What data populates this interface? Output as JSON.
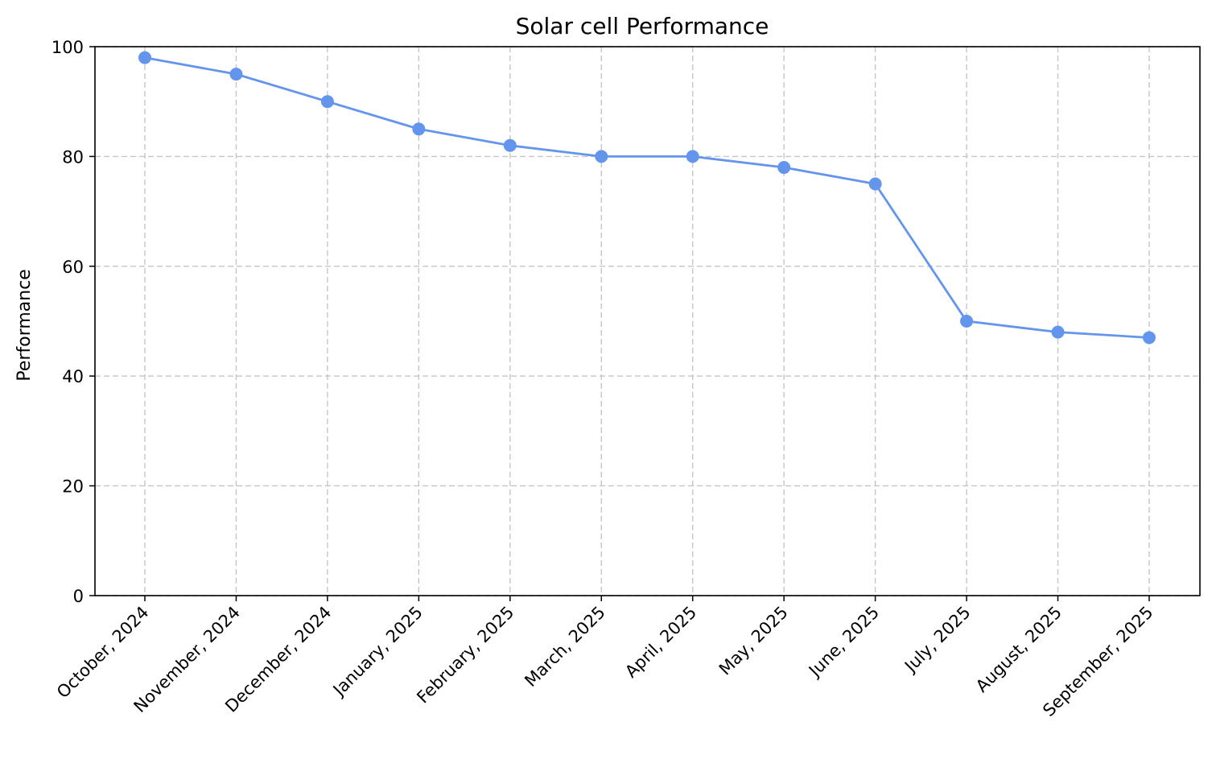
{
  "chart_data": {
    "type": "line",
    "title": "Solar cell Performance",
    "xlabel": "",
    "ylabel": "Performance",
    "categories": [
      "October, 2024",
      "November, 2024",
      "December, 2024",
      "January, 2025",
      "February, 2025",
      "March, 2025",
      "April, 2025",
      "May, 2025",
      "June, 2025",
      "July, 2025",
      "August, 2025",
      "September, 2025"
    ],
    "series": [
      {
        "values": [
          98,
          95,
          90,
          85,
          82,
          80,
          80,
          78,
          75,
          50,
          48,
          47
        ],
        "color": "#6495ed",
        "marker": "circle"
      }
    ],
    "ylim": [
      0,
      100
    ],
    "yticks": [
      0,
      20,
      40,
      60,
      80,
      100
    ],
    "grid": true,
    "legend": "none"
  }
}
